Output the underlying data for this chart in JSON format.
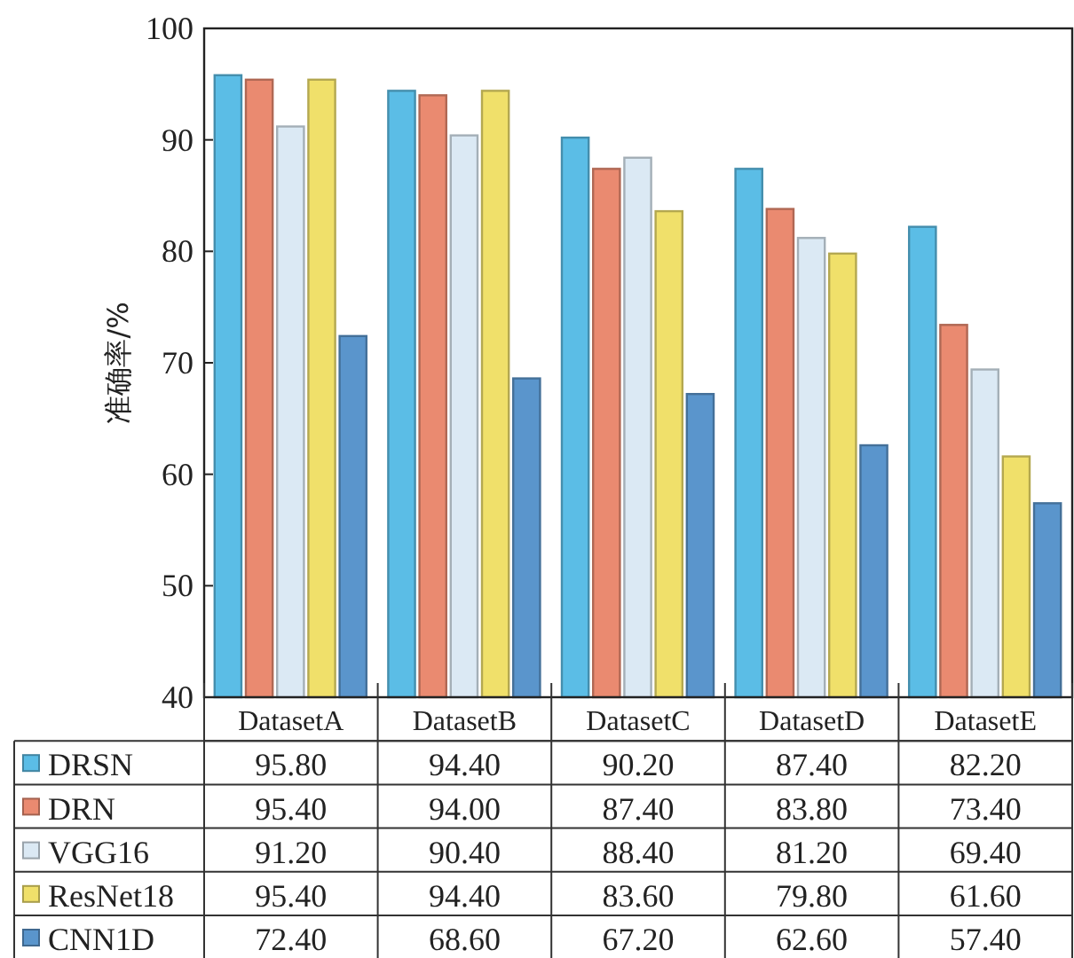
{
  "chart_data": {
    "type": "bar",
    "ylabel": "准确率/%",
    "categories": [
      "DatasetA",
      "DatasetB",
      "DatasetC",
      "DatasetD",
      "DatasetE"
    ],
    "series": [
      {
        "name": "DRSN",
        "color": "#5bbde6",
        "values": [
          95.8,
          94.4,
          90.2,
          87.4,
          82.2
        ],
        "value_labels": [
          "95.80",
          "94.40",
          "90.20",
          "87.40",
          "82.20"
        ]
      },
      {
        "name": "DRN",
        "color": "#ea8a70",
        "values": [
          95.4,
          94.0,
          87.4,
          83.8,
          73.4
        ],
        "value_labels": [
          "95.40",
          "94.00",
          "87.40",
          "83.80",
          "73.40"
        ]
      },
      {
        "name": "VGG16",
        "color": "#dbe9f4",
        "values": [
          91.2,
          90.4,
          88.4,
          81.2,
          69.4
        ],
        "value_labels": [
          "91.20",
          "90.40",
          "88.40",
          "81.20",
          "69.40"
        ]
      },
      {
        "name": "ResNet18",
        "color": "#f0e06a",
        "values": [
          95.4,
          94.4,
          83.6,
          79.8,
          61.6
        ],
        "value_labels": [
          "95.40",
          "94.40",
          "83.60",
          "79.80",
          "61.60"
        ]
      },
      {
        "name": "CNN1D",
        "color": "#5a95cc",
        "values": [
          72.4,
          68.6,
          67.2,
          62.6,
          57.4
        ],
        "value_labels": [
          "72.40",
          "68.60",
          "67.20",
          "62.60",
          "57.40"
        ]
      }
    ],
    "ylim": [
      40,
      100
    ],
    "yticks": [
      40,
      50,
      60,
      70,
      80,
      90,
      100
    ],
    "legend": "bottom"
  }
}
